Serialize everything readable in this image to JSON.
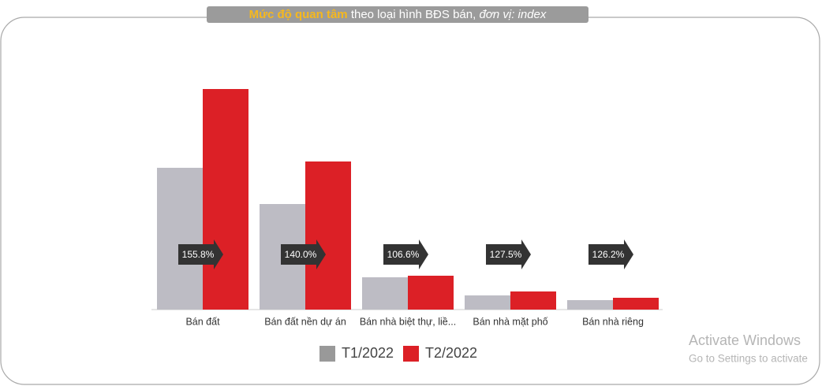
{
  "chart_data": {
    "type": "bar",
    "title": {
      "highlight": "Mức độ quan tâm",
      "main": "theo loại hình BĐS bán,",
      "unit": "đơn vị: index"
    },
    "categories": [
      "Bán đất",
      "Bán đất nền dự án",
      "Bán nhà biệt thự, liề...",
      "Bán nhà mặt phố",
      "Bán nhà riêng"
    ],
    "series": [
      {
        "name": "T1/2022",
        "color": "#bdbcc4",
        "values": [
          90,
          67,
          20.5,
          9,
          6
        ]
      },
      {
        "name": "T2/2022",
        "color": "#dc2026",
        "values": [
          140,
          94,
          21.5,
          11.5,
          7.5
        ]
      }
    ],
    "annotations": [
      "155.8%",
      "140.0%",
      "106.6%",
      "127.5%",
      "126.2%"
    ],
    "ylim": [
      0,
      140
    ],
    "legend": "bottom"
  },
  "watermark": {
    "title": "Activate Windows",
    "subtitle": "Go to Settings to activate"
  }
}
